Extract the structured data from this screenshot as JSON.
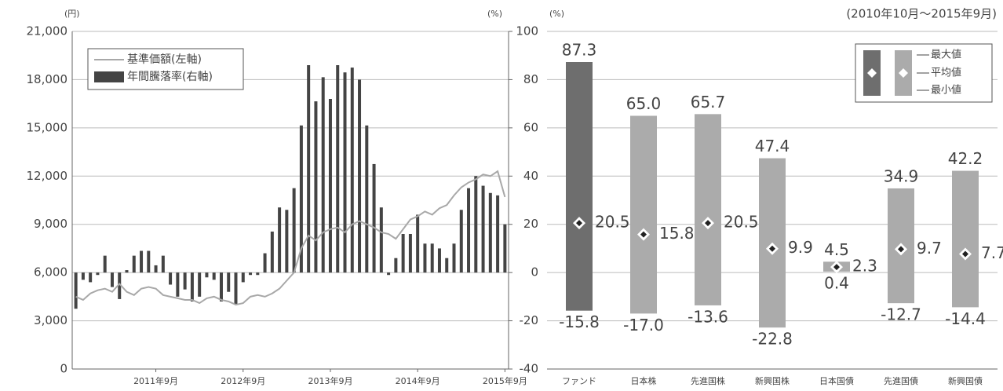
{
  "chart_data": [
    {
      "type": "combo",
      "y_label": "(円)",
      "y2_label": "(%)",
      "categories": [
        null,
        null,
        null,
        null,
        null,
        null,
        null,
        null,
        null,
        null,
        null,
        "2011年9月",
        null,
        null,
        null,
        null,
        null,
        null,
        null,
        null,
        null,
        null,
        null,
        "2012年9月",
        null,
        null,
        null,
        null,
        null,
        null,
        null,
        null,
        null,
        null,
        null,
        "2013年9月",
        null,
        null,
        null,
        null,
        null,
        null,
        null,
        null,
        null,
        null,
        null,
        "2014年9月",
        null,
        null,
        null,
        null,
        null,
        null,
        null,
        null,
        null,
        null,
        null,
        "2015年9月"
      ],
      "series": [
        {
          "name": "基準価額(左軸)",
          "type": "line",
          "color": "#a8a8a8",
          "values": [
            4500,
            4300,
            4700,
            4900,
            5000,
            4800,
            5300,
            4800,
            4600,
            5000,
            5100,
            5000,
            4600,
            4500,
            4400,
            4300,
            4300,
            4100,
            4400,
            4500,
            4300,
            4200,
            4000,
            4100,
            4500,
            4600,
            4500,
            4700,
            5000,
            5500,
            6000,
            7500,
            8300,
            8000,
            8500,
            8700,
            8800,
            8500,
            9000,
            9200,
            9000,
            8800,
            8500,
            8400,
            8100,
            8700,
            9300,
            9500,
            9800,
            9600,
            10000,
            10200,
            10800,
            11300,
            11600,
            11800,
            12100,
            12000,
            12300,
            10700
          ]
        },
        {
          "name": "年間騰落率(右軸)",
          "type": "bar",
          "axis": "y2",
          "color": "#444444",
          "values": [
            -15,
            -3,
            -4,
            -1,
            7,
            -6,
            -11,
            1,
            7,
            9,
            9,
            3,
            7,
            -5,
            -10,
            -7,
            -12,
            -10,
            -2,
            -3,
            -12,
            -8,
            -13,
            -4,
            -1,
            -1,
            8,
            17,
            27,
            26,
            35,
            61,
            86,
            71,
            81,
            72,
            86,
            83,
            85,
            80,
            61,
            45,
            27,
            -1,
            6,
            16,
            16,
            24,
            12,
            12,
            10,
            6,
            12,
            26,
            35,
            40,
            36,
            33,
            32,
            20
          ]
        }
      ],
      "ylim": [
        0,
        21000
      ],
      "yticks": [
        0,
        {
          "value": 3000,
          "label": "3,000"
        },
        {
          "value": 6000,
          "label": "6,000"
        },
        {
          "value": 9000,
          "label": "9,000"
        },
        {
          "value": 12000,
          "label": "12,000"
        },
        {
          "value": 15000,
          "label": "15,000"
        },
        {
          "value": 18000,
          "label": "18,000"
        },
        {
          "value": 21000,
          "label": "21,000"
        }
      ],
      "y2lim": [
        -40,
        100
      ],
      "y2ticks": [
        -40,
        -20,
        0,
        20,
        40,
        60,
        80,
        100
      ],
      "grid": true
    },
    {
      "type": "range",
      "y_label": "(%)",
      "subtitle": "(2010年10月～2015年9月)",
      "categories": [
        "ファンド",
        "日本株",
        "先進国株",
        "新興国株",
        "日本国債",
        "先進国債",
        "新興国債"
      ],
      "colors": [
        "#6e6e6e",
        "#ababab",
        "#ababab",
        "#ababab",
        "#ababab",
        "#ababab",
        "#ababab"
      ],
      "series": [
        {
          "name": "最大値",
          "values": [
            87.3,
            65.0,
            65.7,
            47.4,
            4.5,
            34.9,
            42.2
          ],
          "value_labels": [
            "87.3",
            "65.0",
            "65.7",
            "47.4",
            "4.5",
            "34.9",
            "42.2"
          ]
        },
        {
          "name": "平均値",
          "values": [
            20.5,
            15.8,
            20.5,
            9.9,
            2.3,
            9.7,
            7.7
          ]
        },
        {
          "name": "最小値",
          "values": [
            -15.8,
            -17.0,
            -13.6,
            -22.8,
            0.4,
            -12.7,
            -14.4
          ],
          "value_labels": [
            "-15.8",
            "-17.0",
            "-13.6",
            "-22.8",
            "0.4",
            "-12.7",
            "-14.4"
          ]
        }
      ],
      "ylim": [
        -40,
        100
      ],
      "grid": true
    }
  ]
}
